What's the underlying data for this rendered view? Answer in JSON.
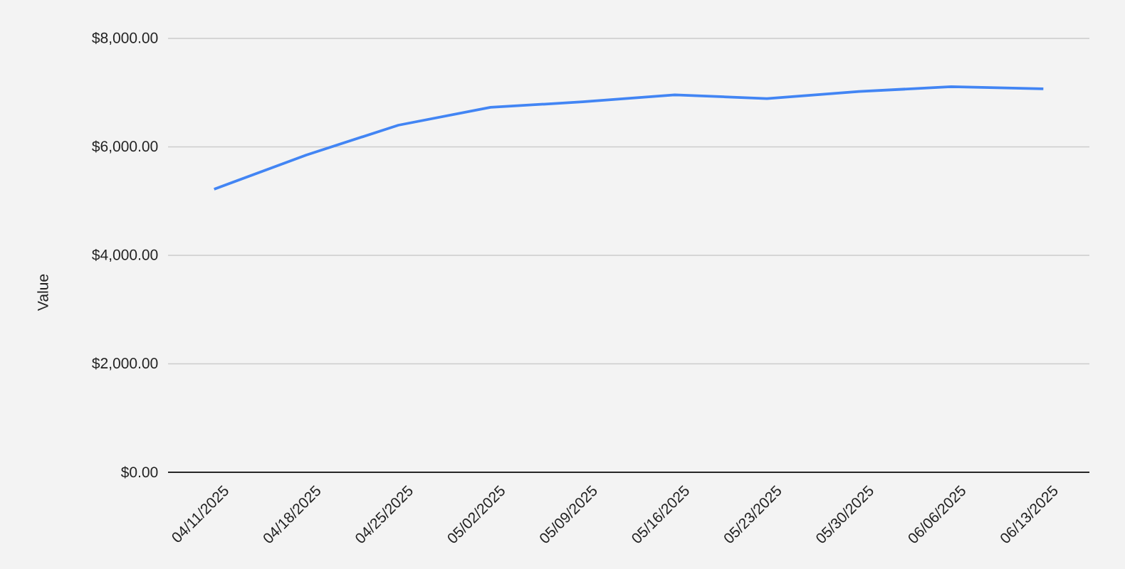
{
  "chart_data": {
    "type": "line",
    "ylabel": "Value",
    "categories": [
      "04/11/2025",
      "04/18/2025",
      "04/25/2025",
      "05/02/2025",
      "05/09/2025",
      "05/16/2025",
      "05/23/2025",
      "05/30/2025",
      "06/06/2025",
      "06/13/2025"
    ],
    "series": [
      {
        "color": "#4285f4",
        "values": [
          5220,
          5850,
          6400,
          6730,
          6830,
          6960,
          6890,
          7020,
          7110,
          7070
        ]
      }
    ],
    "ylim": [
      0,
      8000
    ],
    "yticks": [
      {
        "value": 0,
        "label": "$0.00"
      },
      {
        "value": 2000,
        "label": "$2,000.00"
      },
      {
        "value": 4000,
        "label": "$4,000.00"
      },
      {
        "value": 6000,
        "label": "$6,000.00"
      },
      {
        "value": 8000,
        "label": "$8,000.00"
      }
    ],
    "grid": "y",
    "legend": false,
    "line_style": "solid"
  }
}
